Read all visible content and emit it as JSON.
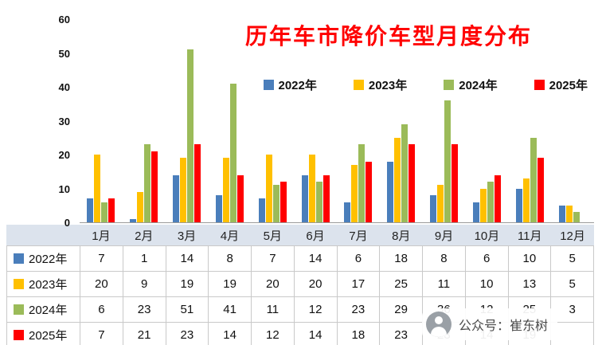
{
  "title": "历年车市降价车型月度分布",
  "watermark": {
    "text": "公众号：崔东树"
  },
  "chart_data": {
    "type": "bar",
    "title": "历年车市降价车型月度分布",
    "categories": [
      "1月",
      "2月",
      "3月",
      "4月",
      "5月",
      "6月",
      "7月",
      "8月",
      "9月",
      "10月",
      "11月",
      "12月"
    ],
    "series": [
      {
        "name": "2022年",
        "color": "#4a7ebb",
        "values": [
          7,
          1,
          14,
          8,
          7,
          14,
          6,
          18,
          8,
          6,
          10,
          5
        ]
      },
      {
        "name": "2023年",
        "color": "#ffc000",
        "values": [
          20,
          9,
          19,
          19,
          20,
          20,
          17,
          25,
          11,
          10,
          13,
          5
        ]
      },
      {
        "name": "2024年",
        "color": "#9bbb59",
        "values": [
          6,
          23,
          51,
          41,
          11,
          12,
          23,
          29,
          36,
          12,
          25,
          3
        ]
      },
      {
        "name": "2025年",
        "color": "#ff0000",
        "values": [
          7,
          21,
          23,
          14,
          12,
          14,
          18,
          23,
          23,
          14,
          19,
          null
        ]
      }
    ],
    "xlabel": "",
    "ylabel": "",
    "ylim": [
      0,
      60
    ],
    "yticks": [
      0,
      10,
      20,
      30,
      40,
      50,
      60
    ],
    "grid": false,
    "legend_position": "inside-upper-right"
  }
}
